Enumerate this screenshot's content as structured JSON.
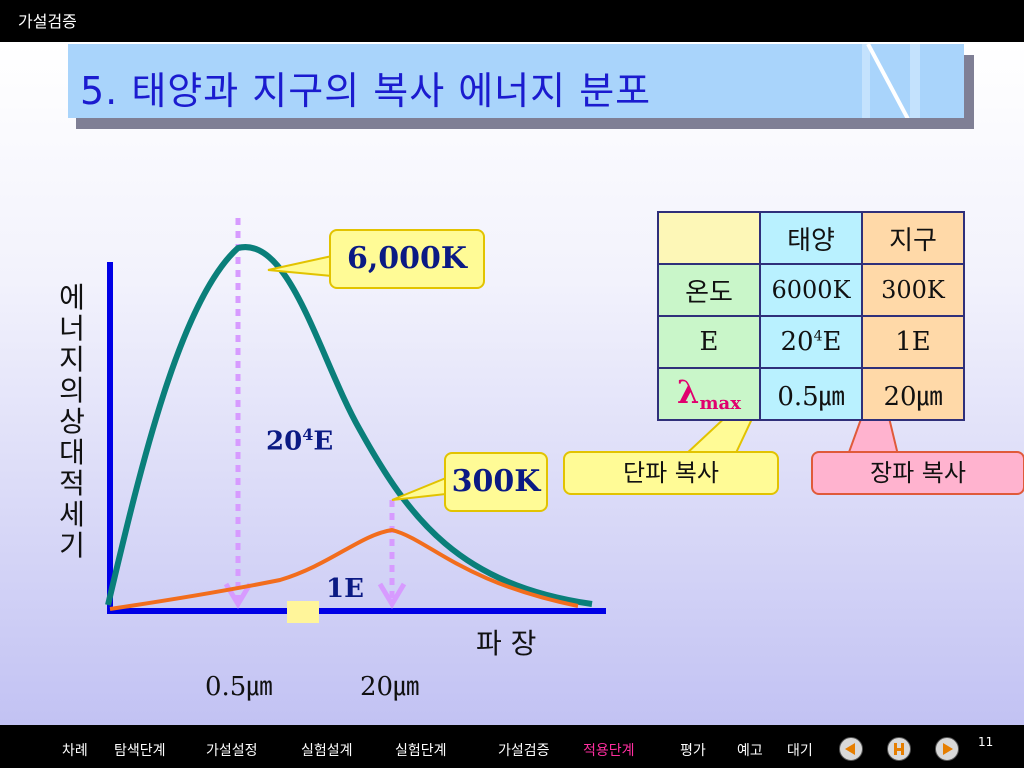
{
  "header": {
    "section": "가설검증"
  },
  "title": "5. 태양과 지구의 복사 에너지 분포",
  "chart_data": {
    "type": "line",
    "series": [
      {
        "name": "6,000K",
        "color": "#0a7f7a",
        "peak_wavelength": "0.5㎛",
        "energy": "20⁴E"
      },
      {
        "name": "300K",
        "color": "#f26d1d",
        "peak_wavelength": "20㎛",
        "energy": "1E"
      }
    ],
    "xlabel": "파 장",
    "ylabel": "에너지의 상대적 세기",
    "x_ticks": [
      "0.5㎛",
      "20㎛"
    ],
    "annotations": {
      "sun_energy": "20",
      "sun_energy_sup": "4",
      "sun_energy_suffix": "E",
      "earth_energy": "1E"
    }
  },
  "callouts": {
    "sun_temp": "6,000K",
    "earth_temp": "300K",
    "shortwave": "단파 복사",
    "longwave": "장파 복사"
  },
  "table": {
    "headers": [
      "",
      "태양",
      "지구"
    ],
    "rows": [
      {
        "label": "온도",
        "sun": "6000K",
        "earth": "300K"
      },
      {
        "label": "E",
        "sun": "20",
        "sun_sup": "4",
        "sun_suffix": "E",
        "earth": "1E"
      },
      {
        "label": "λ",
        "label_sub": "max",
        "sun": "0.5㎛",
        "earth": "20㎛"
      }
    ]
  },
  "nav": {
    "items": [
      "차례",
      "탐색단계",
      "가설설정",
      "실험설계",
      "실험단계",
      "가설검증",
      "적용단계",
      "평가",
      "예고",
      "대기"
    ],
    "active": "적용단계",
    "page": "11"
  },
  "colors": {
    "accent_title": "#1b1bcf",
    "title_bg": "#a9d4fb",
    "nav_active": "#ff2ea0"
  }
}
